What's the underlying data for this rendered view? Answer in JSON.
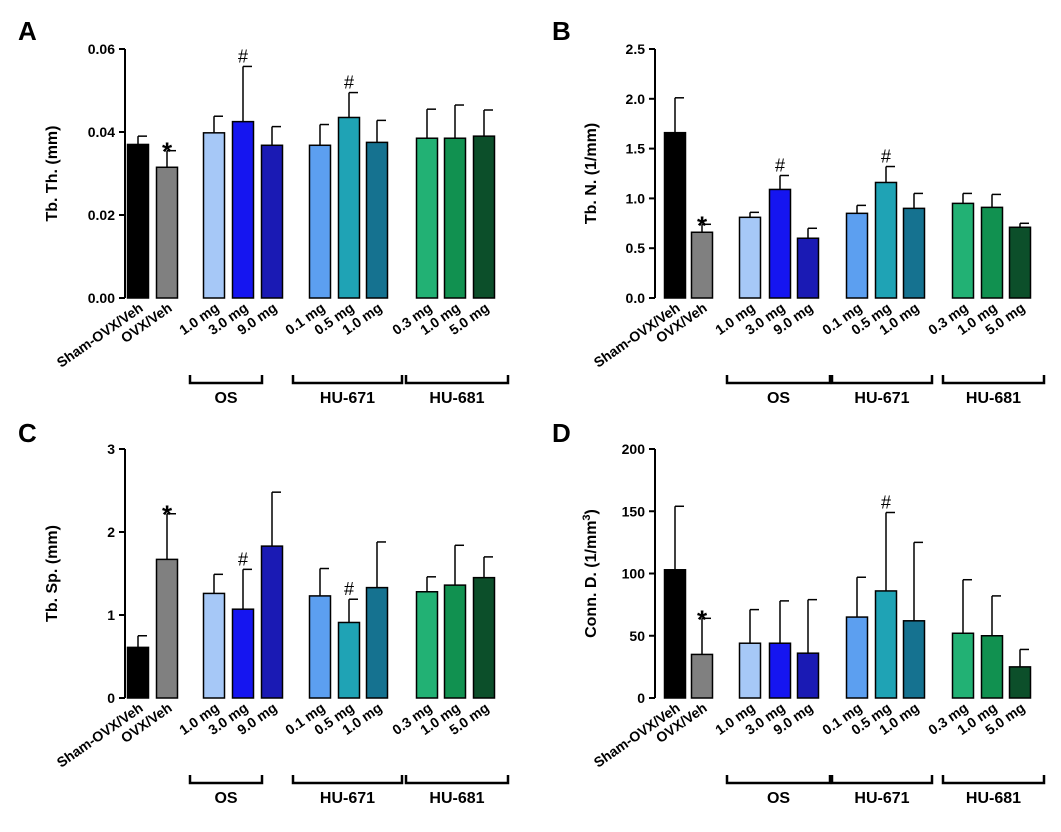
{
  "figure": {
    "groups": {
      "os": "OS",
      "hu671": "HU-671",
      "hu681": "HU-681"
    },
    "categories": [
      "Sham-OVX/Veh",
      "OVX/Veh",
      "1.0 mg",
      "3.0 mg",
      "9.0 mg",
      "0.1 mg",
      "0.5 mg",
      "1.0 mg",
      "0.3 mg",
      "1.0 mg",
      "5.0 mg"
    ],
    "colors": [
      "#000000",
      "#808080",
      "#a6c8f7",
      "#1515f0",
      "#1a1ab4",
      "#5c9ff0",
      "#1fa3b5",
      "#157290",
      "#22b174",
      "#119150",
      "#0c4f2a"
    ]
  },
  "chart_data": [
    {
      "panel": "A",
      "type": "bar",
      "ylabel": "Tb. Th.  (mm)",
      "ylim": [
        0,
        0.06
      ],
      "yticks": [
        "0.00",
        "0.02",
        "0.04",
        "0.06"
      ],
      "tick_values": [
        0,
        0.02,
        0.04,
        0.06
      ],
      "values": [
        0.037,
        0.0315,
        0.0398,
        0.0425,
        0.0368,
        0.0368,
        0.0435,
        0.0375,
        0.0385,
        0.0385,
        0.039
      ],
      "errors": [
        0.002,
        0.004,
        0.004,
        0.0133,
        0.0045,
        0.005,
        0.006,
        0.0053,
        0.007,
        0.008,
        0.0063
      ],
      "markers": [
        "",
        "*",
        "",
        "#",
        "",
        "",
        "#",
        "",
        "",
        "",
        ""
      ]
    },
    {
      "panel": "B",
      "type": "bar",
      "ylabel": "Tb. N.  (1/mm)",
      "ylim": [
        0,
        2.5
      ],
      "yticks": [
        "0.0",
        "0.5",
        "1.0",
        "1.5",
        "2.0",
        "2.5"
      ],
      "tick_values": [
        0,
        0.5,
        1.0,
        1.5,
        2.0,
        2.5
      ],
      "values": [
        1.66,
        0.66,
        0.81,
        1.09,
        0.6,
        0.85,
        1.16,
        0.9,
        0.95,
        0.91,
        0.71
      ],
      "errors": [
        0.35,
        0.08,
        0.05,
        0.14,
        0.1,
        0.08,
        0.16,
        0.15,
        0.1,
        0.13,
        0.04
      ],
      "markers": [
        "",
        "*",
        "",
        "#",
        "",
        "",
        "#",
        "",
        "",
        "",
        ""
      ]
    },
    {
      "panel": "C",
      "type": "bar",
      "ylabel": "Tb. Sp.  (mm)",
      "ylim": [
        0,
        3
      ],
      "yticks": [
        "0",
        "1",
        "2",
        "3"
      ],
      "tick_values": [
        0,
        1,
        2,
        3
      ],
      "values": [
        0.61,
        1.67,
        1.26,
        1.07,
        1.83,
        1.23,
        0.91,
        1.33,
        1.28,
        1.36,
        1.45
      ],
      "errors": [
        0.14,
        0.55,
        0.23,
        0.48,
        0.65,
        0.33,
        0.28,
        0.55,
        0.18,
        0.48,
        0.25
      ],
      "markers": [
        "",
        "*",
        "",
        "#",
        "",
        "",
        "#",
        "",
        "",
        "",
        ""
      ]
    },
    {
      "panel": "D",
      "type": "bar",
      "ylabel": "Conn. D.  (1/mm",
      "ylabel_sup": "3",
      "ylabel_end": ")",
      "ylim": [
        0,
        200
      ],
      "yticks": [
        "0",
        "50",
        "100",
        "150",
        "200"
      ],
      "tick_values": [
        0,
        50,
        100,
        150,
        200
      ],
      "values": [
        103,
        35,
        44,
        44,
        36,
        65,
        86,
        62,
        52,
        50,
        25
      ],
      "errors": [
        51,
        29,
        27,
        34,
        43,
        32,
        63,
        63,
        43,
        32,
        14
      ],
      "markers": [
        "",
        "*",
        "",
        "",
        "",
        "",
        "#",
        "",
        "",
        "",
        ""
      ]
    }
  ]
}
